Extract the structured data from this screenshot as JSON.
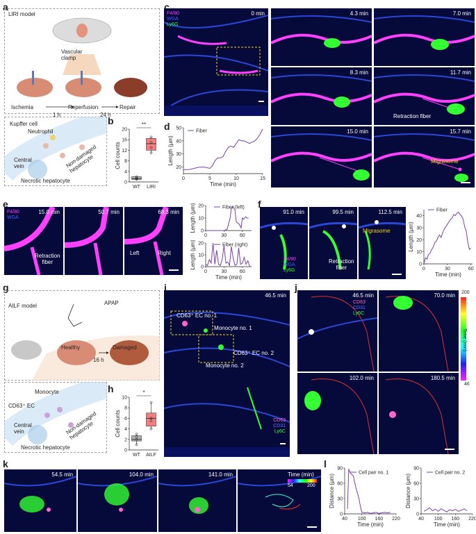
{
  "panels": {
    "a": {
      "letter": "a",
      "model": "LIRI model",
      "clamp": "Vascular\nclamp",
      "steps": [
        "Ischemia",
        "Reperfusion",
        "Repair"
      ],
      "durations": [
        "1 h",
        "24 h"
      ],
      "cells": [
        "Kupffer cell",
        "Neutrophil",
        "Central\nvein",
        "Non-damaged\nhepatocyte",
        "Necrotic hepatocyte"
      ]
    },
    "b": {
      "letter": "b",
      "sig": "**",
      "ylabel": "Cell counts",
      "groups": [
        "WT",
        "LIRI"
      ],
      "yticks": [
        "0",
        "4",
        "8",
        "12",
        "16",
        "20"
      ]
    },
    "c": {
      "letter": "c",
      "channels": [
        "F4/80",
        "WGA",
        "Ly6G"
      ],
      "times": [
        "0 min",
        "4.3 min",
        "7.0 min",
        "8.3 min",
        "11.7 min",
        "15.0 min",
        "15.7 min"
      ],
      "retraction": "Retraction fiber",
      "migrasome": "Migrasome"
    },
    "d": {
      "letter": "d"
    },
    "e": {
      "letter": "e",
      "channels": [
        "F4/80",
        "WGA"
      ],
      "times": [
        "15.0 min",
        "50.7 min",
        "68.3 min"
      ],
      "retraction": "Retraction\nfiber",
      "left": "Left",
      "right": "Right"
    },
    "f": {
      "letter": "f",
      "channels": [
        "F4/80",
        "WGA",
        "Ly6G"
      ],
      "times": [
        "91.0 min",
        "99.5 min",
        "112.5 min"
      ],
      "migrasome": "Migrasome",
      "retraction": "Retraction\nfiber"
    },
    "g": {
      "letter": "g",
      "model": "AILF model",
      "drug": "APAP",
      "states": [
        "Healthy",
        "Damaged"
      ],
      "duration": "16 h",
      "cells": [
        "Monocyte",
        "CD63⁺ EC",
        "Central\nvein",
        "Non-damaged\nhepatocyte",
        "Necrotic hepatocyte"
      ]
    },
    "h": {
      "letter": "h",
      "sig": "*",
      "ylabel": "Cell counts",
      "groups": [
        "WT",
        "AILF"
      ],
      "yticks": [
        "0",
        "2",
        "4",
        "6",
        "8",
        "10"
      ]
    },
    "i": {
      "letter": "i",
      "time": "46.5 min",
      "labels": [
        "CD63⁺ EC no. 1",
        "Monocyte no. 1",
        "CD63⁺ EC no. 2",
        "Monocyte no. 2"
      ],
      "channels": [
        "CD63",
        "CD31",
        "Ly6C"
      ]
    },
    "j": {
      "letter": "j",
      "times": [
        "46.5 min",
        "70.0 min",
        "102.0 min",
        "180.5 min"
      ],
      "channels": [
        "CD63",
        "CD31",
        "Ly6C"
      ],
      "cbar_title": "Time (min)",
      "cbar_max": "200",
      "cbar_min": "46"
    },
    "k": {
      "letter": "k",
      "times": [
        "54.5 min",
        "104.0 min",
        "141.0 min"
      ],
      "cbar_title": "Time (min)",
      "cbar_min": "54",
      "cbar_max": "200"
    },
    "l": {
      "letter": "l"
    }
  },
  "colors": {
    "f480": "#ff40ff",
    "wga": "#4a5cff",
    "ly6g": "#33ff33",
    "cd63": "#ff66cc",
    "cd31": "#6f6cff",
    "ly6c": "#33ff33",
    "migrasome": "#f5d60f",
    "line": "#7b3fb0",
    "box": "#f08080"
  },
  "chart_data": [
    {
      "id": "b",
      "type": "box",
      "ylabel": "Cell counts",
      "categories": [
        "WT",
        "LIRI"
      ],
      "ylim": [
        0,
        20
      ],
      "series": [
        {
          "name": "WT",
          "values": [
            1,
            1.5,
            2,
            1.2
          ],
          "box": [
            1,
            1.2,
            2
          ],
          "color": "#b0b0b0"
        },
        {
          "name": "LIRI",
          "values": [
            11,
            13,
            17,
            15
          ],
          "box": [
            12,
            14.5,
            16.5
          ],
          "color": "#f08080"
        }
      ]
    },
    {
      "id": "d",
      "type": "line",
      "xlabel": "Time (min)",
      "ylabel": "Length (μm)",
      "xlim": [
        0,
        15
      ],
      "ylim": [
        15,
        50
      ],
      "xticks": [
        0,
        5,
        10,
        15
      ],
      "yticks": [
        20,
        30,
        40,
        50
      ],
      "series": [
        {
          "name": "Fiber",
          "x": [
            0,
            1,
            2,
            3,
            4,
            5,
            5.5,
            6,
            6.5,
            7,
            7.5,
            8,
            8.5,
            9,
            9.5,
            10,
            10.5,
            11,
            11.5,
            12,
            12.5,
            13,
            13.5,
            14,
            14.5,
            15
          ],
          "y": [
            18,
            18,
            19,
            20,
            20,
            19,
            21,
            25,
            27,
            27,
            28,
            32,
            35,
            36,
            35,
            38,
            41,
            40,
            40,
            39,
            38,
            39,
            40,
            42,
            45,
            49
          ]
        }
      ]
    },
    {
      "id": "e-left",
      "type": "line",
      "xlabel": "",
      "ylabel": "Length (μm)",
      "xlim": [
        0,
        75
      ],
      "ylim": [
        0,
        20
      ],
      "xticks": [
        0,
        30,
        60
      ],
      "yticks": [
        0,
        10,
        20
      ],
      "series": [
        {
          "name": "Fiber (left)",
          "x": [
            0,
            10,
            20,
            30,
            35,
            40,
            42,
            45,
            48,
            50,
            55,
            58,
            60,
            62,
            65,
            68,
            70
          ],
          "y": [
            0,
            0,
            0,
            0,
            1,
            10,
            18,
            19,
            16,
            7,
            5,
            2,
            10,
            9,
            11,
            10,
            10
          ]
        }
      ]
    },
    {
      "id": "e-right",
      "type": "line",
      "xlabel": "Time (min)",
      "ylabel": "Length (μm)",
      "xlim": [
        0,
        75
      ],
      "ylim": [
        0,
        20
      ],
      "xticks": [
        0,
        30,
        60
      ],
      "yticks": [
        0,
        10,
        20
      ],
      "series": [
        {
          "name": "Fiber (right)",
          "x": [
            0,
            3,
            6,
            9,
            12,
            15,
            18,
            21,
            24,
            27,
            30,
            33,
            36,
            39,
            42,
            45,
            48,
            51,
            54,
            57,
            60,
            63,
            66,
            69,
            72
          ],
          "y": [
            2,
            1,
            6,
            3,
            20,
            2,
            14,
            2,
            1,
            6,
            18,
            3,
            4,
            1,
            17,
            7,
            1,
            2,
            16,
            2,
            3,
            8,
            2,
            5,
            0
          ]
        }
      ]
    },
    {
      "id": "f",
      "type": "line",
      "xlabel": "Time (min)",
      "ylabel": "Length (μm)",
      "xlim": [
        0,
        62
      ],
      "ylim": [
        0,
        45
      ],
      "xticks": [
        0,
        30,
        60
      ],
      "yticks": [
        0,
        10,
        20,
        30,
        40
      ],
      "series": [
        {
          "name": "Fiber",
          "x": [
            0,
            2,
            4,
            6,
            8,
            10,
            12,
            14,
            16,
            18,
            20,
            22,
            24,
            26,
            28,
            30,
            32,
            34,
            36,
            38,
            40,
            42,
            44,
            46,
            48,
            50,
            52,
            54,
            56,
            58,
            60
          ],
          "y": [
            0,
            5,
            4,
            8,
            9,
            12,
            14,
            18,
            19,
            22,
            24,
            22,
            26,
            29,
            31,
            33,
            35,
            37,
            38,
            41,
            40,
            42,
            43,
            41,
            40,
            37,
            31,
            27,
            18,
            12,
            13
          ]
        }
      ]
    },
    {
      "id": "h",
      "type": "box",
      "ylabel": "Cell counts",
      "categories": [
        "WT",
        "AILF"
      ],
      "ylim": [
        0,
        10
      ],
      "series": [
        {
          "name": "WT",
          "values": [
            1,
            2,
            2.5,
            3
          ],
          "box": [
            1.7,
            2,
            2.7
          ],
          "color": "#b0b0b0"
        },
        {
          "name": "AILF",
          "values": [
            4,
            5.5,
            6,
            9
          ],
          "box": [
            4.5,
            6,
            7
          ],
          "color": "#f08080"
        }
      ]
    },
    {
      "id": "l-1",
      "type": "line",
      "xlabel": "Time (min)",
      "ylabel": "Distance (μm)",
      "xlim": [
        40,
        220
      ],
      "ylim": [
        0,
        90
      ],
      "xticks": [
        40,
        100,
        160,
        220
      ],
      "yticks": [
        0,
        30,
        60,
        90
      ],
      "series": [
        {
          "name": "Cell pair no. 1",
          "x": [
            50,
            54,
            60,
            70,
            80,
            90,
            95,
            100,
            110,
            120,
            130,
            140,
            150,
            160,
            170,
            180,
            190,
            200
          ],
          "y": [
            10,
            88,
            80,
            75,
            50,
            30,
            15,
            3,
            2,
            3,
            1,
            2,
            3,
            1,
            2,
            3,
            2,
            3
          ]
        }
      ]
    },
    {
      "id": "l-2",
      "type": "line",
      "xlabel": "Time (min)",
      "ylabel": "Distance (μm)",
      "xlim": [
        40,
        220
      ],
      "ylim": [
        0,
        90
      ],
      "xticks": [
        40,
        100,
        160,
        220
      ],
      "yticks": [
        0,
        30,
        60,
        90
      ],
      "series": [
        {
          "name": "Cell pair no. 2",
          "x": [
            50,
            60,
            70,
            80,
            90,
            100,
            110,
            120,
            130,
            140,
            150,
            160,
            170,
            180,
            190,
            200
          ],
          "y": [
            5,
            8,
            12,
            6,
            9,
            5,
            10,
            7,
            4,
            8,
            6,
            9,
            5,
            7,
            10,
            6
          ]
        }
      ]
    }
  ]
}
